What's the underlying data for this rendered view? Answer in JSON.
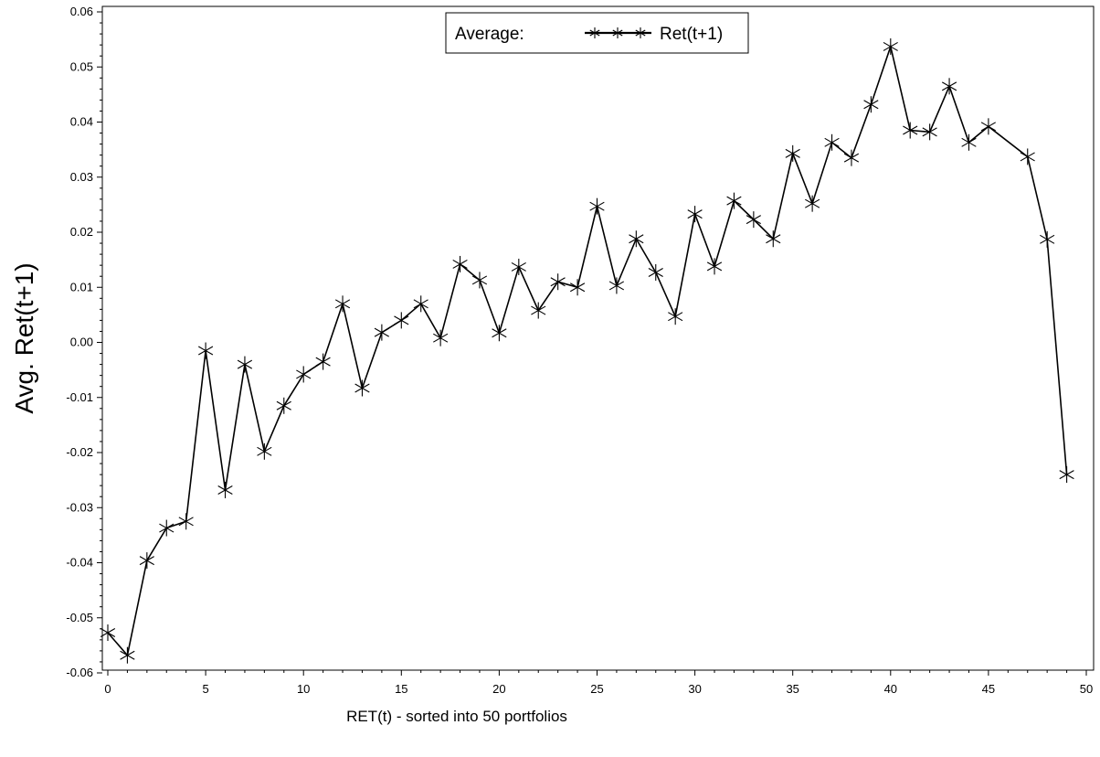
{
  "chart_data": {
    "type": "line",
    "title": "",
    "xlabel": "RET(t) - sorted into 50 portfolios",
    "ylabel": "Avg. Ret(t+1)",
    "xlim": [
      0,
      50
    ],
    "ylim": [
      -0.06,
      0.06
    ],
    "grid": false,
    "legend_position": "top-center",
    "legend_prefix": "Average:",
    "x_ticks": [
      "0",
      "5",
      "10",
      "15",
      "20",
      "25",
      "30",
      "35",
      "40",
      "45",
      "50"
    ],
    "y_ticks": [
      "-0.06",
      "-0.05",
      "-0.04",
      "-0.03",
      "-0.02",
      "-0.01",
      "0.00",
      "0.01",
      "0.02",
      "0.03",
      "0.04",
      "0.05",
      "0.06"
    ],
    "x": [
      0,
      1,
      2,
      3,
      4,
      5,
      6,
      7,
      8,
      9,
      10,
      11,
      12,
      13,
      14,
      15,
      16,
      17,
      18,
      19,
      20,
      21,
      22,
      23,
      24,
      25,
      26,
      27,
      28,
      29,
      30,
      31,
      32,
      33,
      34,
      35,
      36,
      37,
      38,
      39,
      40,
      41,
      42,
      43,
      44,
      45,
      47,
      48,
      49
    ],
    "series": [
      {
        "name": "Ret(t+1)",
        "color": "#000000",
        "marker": "asterisk",
        "values": [
          -0.0527,
          -0.0568,
          -0.0396,
          -0.0337,
          -0.0325,
          -0.0015,
          -0.0268,
          -0.004,
          -0.0198,
          -0.0115,
          -0.0058,
          -0.0035,
          0.007,
          -0.0083,
          0.0018,
          0.004,
          0.007,
          0.0008,
          0.0142,
          0.0113,
          0.0017,
          0.0137,
          0.0058,
          0.011,
          0.01,
          0.0247,
          0.0103,
          0.0188,
          0.0127,
          0.0047,
          0.0233,
          0.0138,
          0.0257,
          0.0223,
          0.0188,
          0.0343,
          0.0252,
          0.0363,
          0.0335,
          0.0432,
          0.0537,
          0.0385,
          0.0382,
          0.0465,
          0.0363,
          0.0392,
          0.0337,
          0.0187,
          -0.024
        ]
      }
    ]
  }
}
